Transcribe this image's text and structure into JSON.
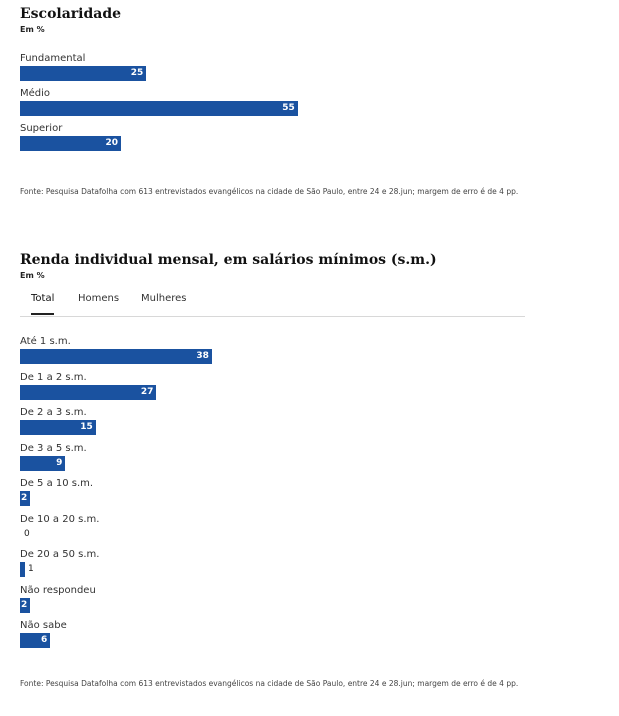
{
  "chart_data": [
    {
      "type": "bar",
      "orientation": "horizontal",
      "title": "Escolaridade",
      "subtitle": "Em %",
      "categories": [
        "Fundamental",
        "Médio",
        "Superior"
      ],
      "values": [
        25,
        55,
        20
      ],
      "color": "#1a52a0"
    },
    {
      "type": "bar",
      "orientation": "horizontal",
      "title": "Renda individual mensal, em salários mínimos (s.m.)",
      "subtitle": "Em %",
      "tabs": [
        "Total",
        "Homens",
        "Mulheres"
      ],
      "active_tab": "Total",
      "categories": [
        "Até 1 s.m.",
        "De 1 a 2 s.m.",
        "De 2 a 3 s.m.",
        "De 3 a 5 s.m.",
        "De 5 a 10 s.m.",
        "De 10 a 20 s.m.",
        "De 20 a 50 s.m.",
        "Não respondeu",
        "Não sabe"
      ],
      "values": [
        38,
        27,
        15,
        9,
        2,
        0,
        1,
        2,
        6
      ],
      "color": "#1a52a0"
    }
  ],
  "sources": [
    "Fonte: Pesquisa Datafolha com 613 entrevistados evangélicos na cidade de São Paulo, entre 24 e 28.jun; margem de erro é de 4 pp.",
    "Fonte: Pesquisa Datafolha com 613 entrevistados evangélicos na cidade de São Paulo, entre 24 e 28.jun; margem de erro é de 4 pp."
  ]
}
